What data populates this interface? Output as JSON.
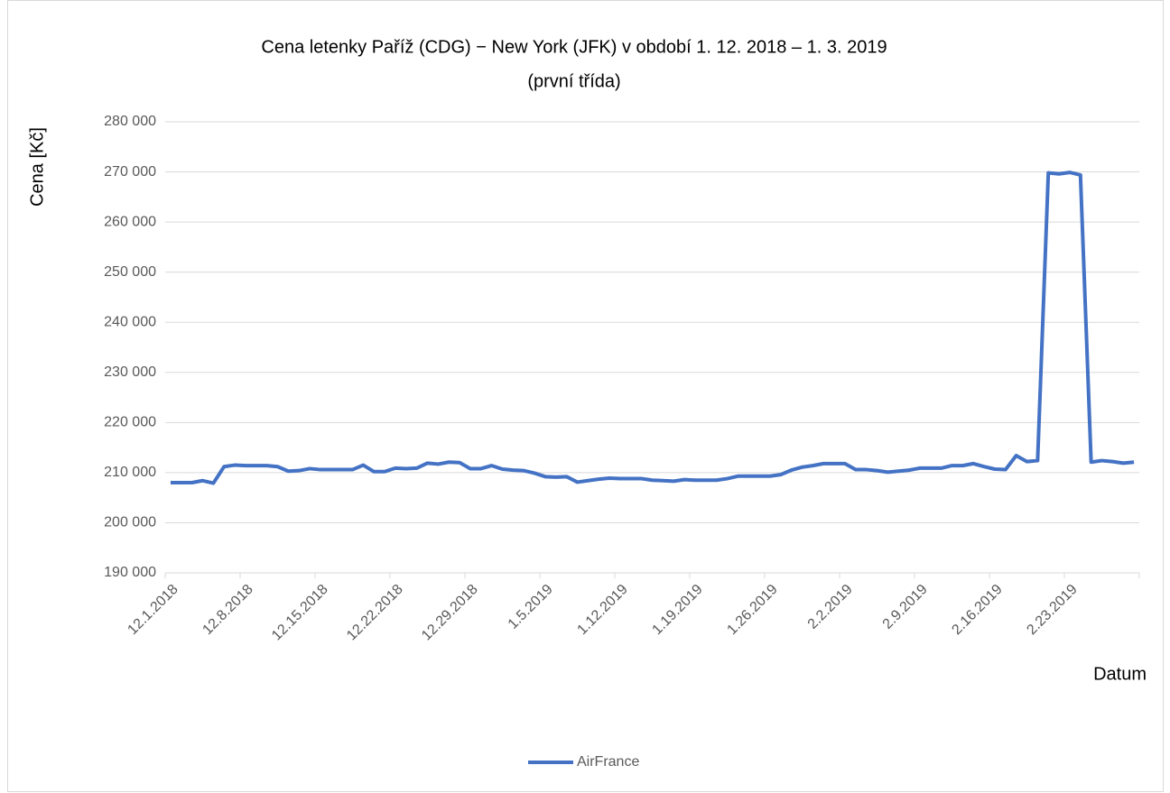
{
  "chart_data": {
    "type": "line",
    "title": [
      "Cena letenky Paříž (CDG) − New York (JFK) v období 1.  12. 2018 – 1. 3. 2019",
      "(první třída)"
    ],
    "y_label": "Cena [Kč]",
    "x_label": "Datum",
    "categories": [
      "12.1.2018",
      null,
      null,
      null,
      null,
      null,
      null,
      "12.8.2018",
      null,
      null,
      null,
      null,
      null,
      null,
      "12.15.2018",
      null,
      null,
      null,
      null,
      null,
      null,
      "12.22.2018",
      null,
      null,
      null,
      null,
      null,
      null,
      "12.29.2018",
      null,
      null,
      null,
      null,
      null,
      null,
      "1.5.2019",
      null,
      null,
      null,
      null,
      null,
      null,
      "1.12.2019",
      null,
      null,
      null,
      null,
      null,
      null,
      "1.19.2019",
      null,
      null,
      null,
      null,
      null,
      null,
      "1.26.2019",
      null,
      null,
      null,
      null,
      null,
      null,
      "2.2.2019",
      null,
      null,
      null,
      null,
      null,
      null,
      "2.9.2019",
      null,
      null,
      null,
      null,
      null,
      null,
      "2.16.2019",
      null,
      null,
      null,
      null,
      null,
      null,
      "2.23.2019",
      null,
      null,
      null,
      null,
      null,
      null
    ],
    "series": [
      {
        "name": "AirFrance",
        "color": "#4472c4",
        "values": [
          208000,
          208000,
          208000,
          208400,
          207900,
          211200,
          211500,
          211400,
          211400,
          211400,
          211200,
          210300,
          210400,
          210800,
          210600,
          210600,
          210600,
          210600,
          211500,
          210200,
          210200,
          210900,
          210800,
          210900,
          211900,
          211700,
          212100,
          212000,
          210800,
          210800,
          211400,
          210700,
          210500,
          210400,
          209900,
          209200,
          209100,
          209200,
          208100,
          208400,
          208700,
          208900,
          208800,
          208800,
          208800,
          208500,
          208400,
          208300,
          208600,
          208500,
          208500,
          208500,
          208800,
          209300,
          209300,
          209300,
          209300,
          209600,
          210500,
          211100,
          211400,
          211800,
          211800,
          211800,
          210600,
          210600,
          210400,
          210100,
          210300,
          210500,
          210900,
          210900,
          210900,
          211400,
          211400,
          211800,
          211200,
          210700,
          210600,
          213400,
          212200,
          212400,
          269800,
          269600,
          269900,
          269400,
          212100,
          212400,
          212200,
          211900,
          212100
        ]
      }
    ],
    "ylim": [
      190000,
      280000
    ],
    "yticks": [
      {
        "value": 190000,
        "label": "190 000"
      },
      {
        "value": 200000,
        "label": "200 000"
      },
      {
        "value": 210000,
        "label": "210 000"
      },
      {
        "value": 220000,
        "label": "220 000"
      },
      {
        "value": 230000,
        "label": "230 000"
      },
      {
        "value": 240000,
        "label": "240 000"
      },
      {
        "value": 250000,
        "label": "250 000"
      },
      {
        "value": 260000,
        "label": "260 000"
      },
      {
        "value": 270000,
        "label": "270 000"
      },
      {
        "value": 280000,
        "label": "280 000"
      }
    ],
    "grid": true,
    "legend": "bottom"
  }
}
